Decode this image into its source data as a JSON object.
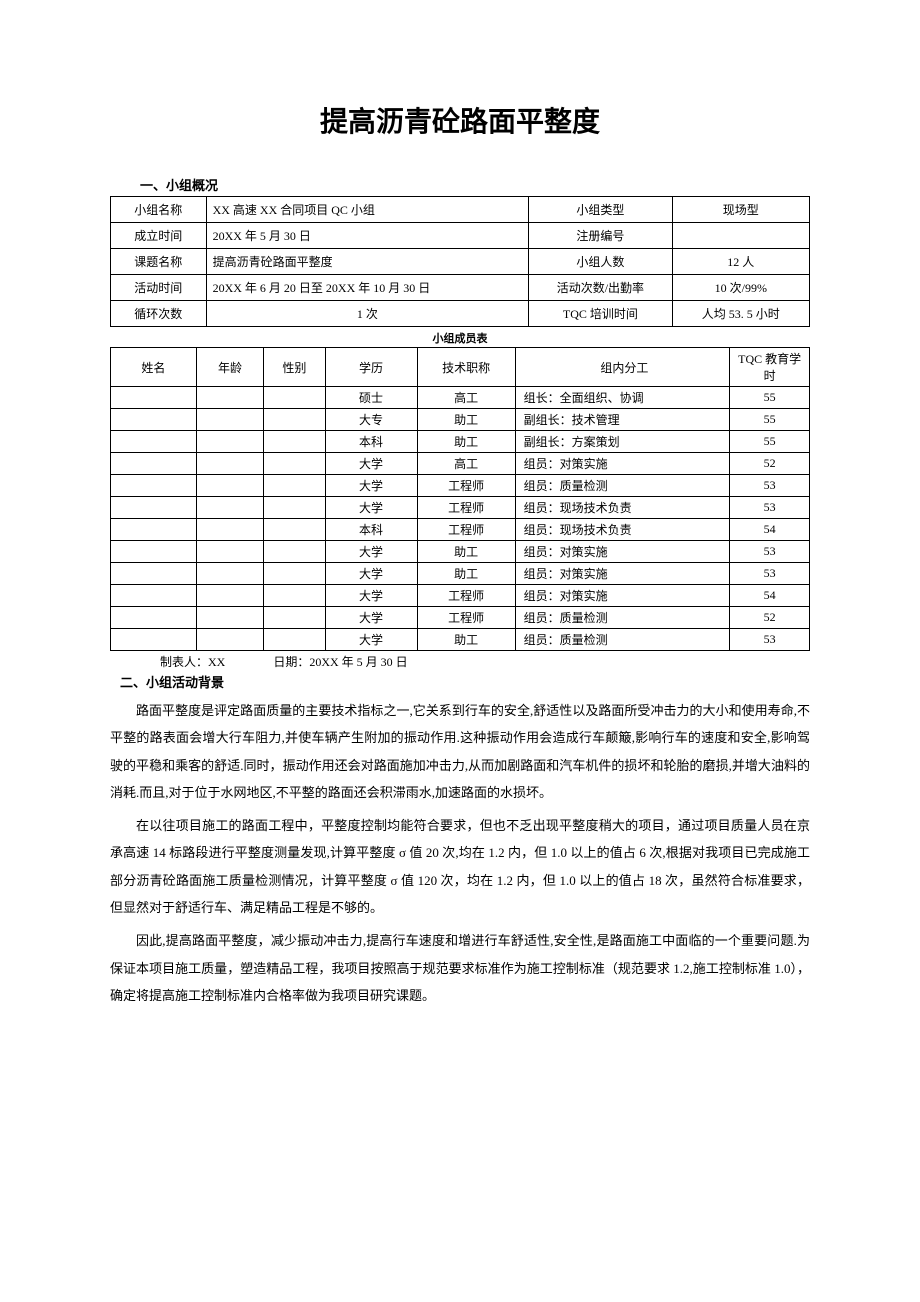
{
  "title": "提高沥青砼路面平整度",
  "section1_header": "一、小组概况",
  "table1": {
    "rows": [
      {
        "label": "小组名称",
        "val1": "XX 高速 XX 合同项目 QC 小组",
        "label2": "小组类型",
        "val2": "现场型"
      },
      {
        "label": "成立时间",
        "val1": "20XX 年 5 月 30 日",
        "label2": "注册编号",
        "val2": ""
      },
      {
        "label": "课题名称",
        "val1": "提高沥青砼路面平整度",
        "label2": "小组人数",
        "val2": "12 人"
      },
      {
        "label": "活动时间",
        "val1": "20XX 年 6 月 20 日至 20XX 年 10 月 30 日",
        "label2": "活动次数/出勤率",
        "val2": "10 次/99%"
      },
      {
        "label": "循环次数",
        "val1": "1 次",
        "label2": "TQC 培训时间",
        "val2": "人均 53. 5 小时",
        "centered": true
      }
    ]
  },
  "table2_title": "小组成员表",
  "table2": {
    "headers": {
      "name": "姓名",
      "age": "年龄",
      "gender": "性别",
      "edu": "学历",
      "title": "技术职称",
      "role": "组内分工",
      "hours": "TQC 教育学时"
    },
    "rows": [
      {
        "name": "",
        "age": "",
        "gender": "",
        "edu": "硕士",
        "title": "高工",
        "role": "组长：全面组织、协调",
        "hours": "55"
      },
      {
        "name": "",
        "age": "",
        "gender": "",
        "edu": "大专",
        "title": "助工",
        "role": "副组长：技术管理",
        "hours": "55"
      },
      {
        "name": "",
        "age": "",
        "gender": "",
        "edu": "本科",
        "title": "助工",
        "role": "副组长：方案策划",
        "hours": "55"
      },
      {
        "name": "",
        "age": "",
        "gender": "",
        "edu": "大学",
        "title": "高工",
        "role": "组员：对策实施",
        "hours": "52"
      },
      {
        "name": "",
        "age": "",
        "gender": "",
        "edu": "大学",
        "title": "工程师",
        "role": "组员：质量检测",
        "hours": "53"
      },
      {
        "name": "",
        "age": "",
        "gender": "",
        "edu": "大学",
        "title": "工程师",
        "role": "组员：现场技术负责",
        "hours": "53"
      },
      {
        "name": "",
        "age": "",
        "gender": "",
        "edu": "本科",
        "title": "工程师",
        "role": "组员：现场技术负责",
        "hours": "54"
      },
      {
        "name": "",
        "age": "",
        "gender": "",
        "edu": "大学",
        "title": "助工",
        "role": "组员：对策实施",
        "hours": "53"
      },
      {
        "name": "",
        "age": "",
        "gender": "",
        "edu": "大学",
        "title": "助工",
        "role": "组员：对策实施",
        "hours": "53"
      },
      {
        "name": "",
        "age": "",
        "gender": "",
        "edu": "大学",
        "title": "工程师",
        "role": "组员：对策实施",
        "hours": "54"
      },
      {
        "name": "",
        "age": "",
        "gender": "",
        "edu": "大学",
        "title": "工程师",
        "role": "组员：质量检测",
        "hours": "52"
      },
      {
        "name": "",
        "age": "",
        "gender": "",
        "edu": "大学",
        "title": "助工",
        "role": "组员：质量检测",
        "hours": "53"
      }
    ]
  },
  "footer_line": "制表人：XX　　　　日期：20XX 年 5 月 30 日",
  "section2_header": "二、小组活动背景",
  "paragraphs": [
    "路面平整度是评定路面质量的主要技术指标之一,它关系到行车的安全,舒适性以及路面所受冲击力的大小和使用寿命,不平整的路表面会增大行车阻力,并使车辆产生附加的振动作用.这种振动作用会造成行车颠簸,影响行车的速度和安全,影响驾驶的平稳和乘客的舒适.同时，振动作用还会对路面施加冲击力,从而加剧路面和汽车机件的损坏和轮胎的磨损,并增大油料的消耗.而且,对于位于水网地区,不平整的路面还会积滞雨水,加速路面的水损坏。",
    "在以往项目施工的路面工程中，平整度控制均能符合要求，但也不乏出现平整度稍大的项目，通过项目质量人员在京承高速 14 标路段进行平整度测量发现,计算平整度 σ 值 20 次,均在 1.2 内，但 1.0 以上的值占 6 次,根据对我项目已完成施工部分沥青砼路面施工质量检测情况，计算平整度 σ 值 120 次，均在 1.2 内，但 1.0 以上的值占 18 次，虽然符合标准要求，但显然对于舒适行车、满足精品工程是不够的。",
    "因此,提高路面平整度，减少振动冲击力,提高行车速度和增进行车舒适性,安全性,是路面施工中面临的一个重要问题.为保证本项目施工质量，塑造精品工程，我项目按照高于规范要求标准作为施工控制标准（规范要求 1.2,施工控制标准 1.0），确定将提高施工控制标准内合格率做为我项目研究课题。"
  ]
}
